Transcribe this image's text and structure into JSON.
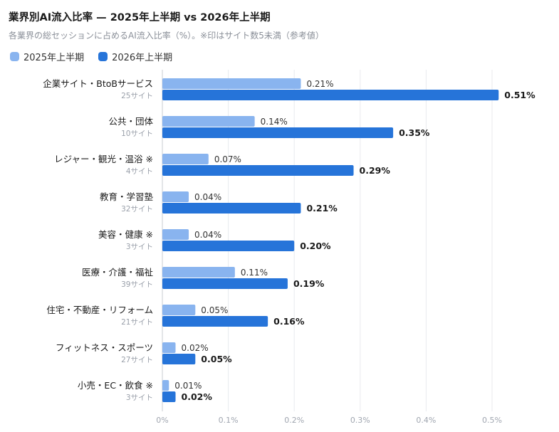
{
  "header": {
    "title": "業界別AI流入比率 — 2025年上半期 vs 2026年上半期",
    "subtitle": "各業界の総セッションに占めるAI流入比率（%）。※印はサイト数5未満（参考値）"
  },
  "colors": {
    "series_2025": "#89b4ef",
    "series_2026": "#2674d9",
    "grid": "#e8eaee",
    "axis": "#c9ccd2"
  },
  "chart_data": {
    "type": "bar",
    "orientation": "horizontal",
    "title": "業界別AI流入比率 — 2025年上半期 vs 2026年上半期",
    "subtitle": "各業界の総セッションに占めるAI流入比率（%）。※印はサイト数5未満（参考値）",
    "xlabel": "",
    "ylabel": "",
    "xlim": [
      0,
      0.55
    ],
    "grid": true,
    "legend_position": "top-left",
    "ticks": [
      "0%",
      "0.1%",
      "0.2%",
      "0.3%",
      "0.4%",
      "0.5%"
    ],
    "tick_values": [
      0,
      0.1,
      0.2,
      0.3,
      0.4,
      0.5
    ],
    "categories": [
      "企業サイト・BtoBサービス",
      "公共・団体",
      "レジャー・観光・温浴 ※",
      "教育・学習塾",
      "美容・健康 ※",
      "医療・介護・福祉",
      "住宅・不動産・リフォーム",
      "フィットネス・スポーツ",
      "小売・EC・飲食 ※"
    ],
    "site_counts": [
      "25サイト",
      "10サイト",
      "4サイト",
      "32サイト",
      "3サイト",
      "39サイト",
      "21サイト",
      "27サイト",
      "3サイト"
    ],
    "series": [
      {
        "name": "2025年上半期",
        "values": [
          0.21,
          0.14,
          0.07,
          0.04,
          0.04,
          0.11,
          0.05,
          0.02,
          0.01
        ],
        "labels": [
          "0.21%",
          "0.14%",
          "0.07%",
          "0.04%",
          "0.04%",
          "0.11%",
          "0.05%",
          "0.02%",
          "0.01%"
        ]
      },
      {
        "name": "2026年上半期",
        "values": [
          0.51,
          0.35,
          0.29,
          0.21,
          0.2,
          0.19,
          0.16,
          0.05,
          0.02
        ],
        "labels": [
          "0.51%",
          "0.35%",
          "0.29%",
          "0.21%",
          "0.20%",
          "0.19%",
          "0.16%",
          "0.05%",
          "0.02%"
        ]
      }
    ]
  }
}
